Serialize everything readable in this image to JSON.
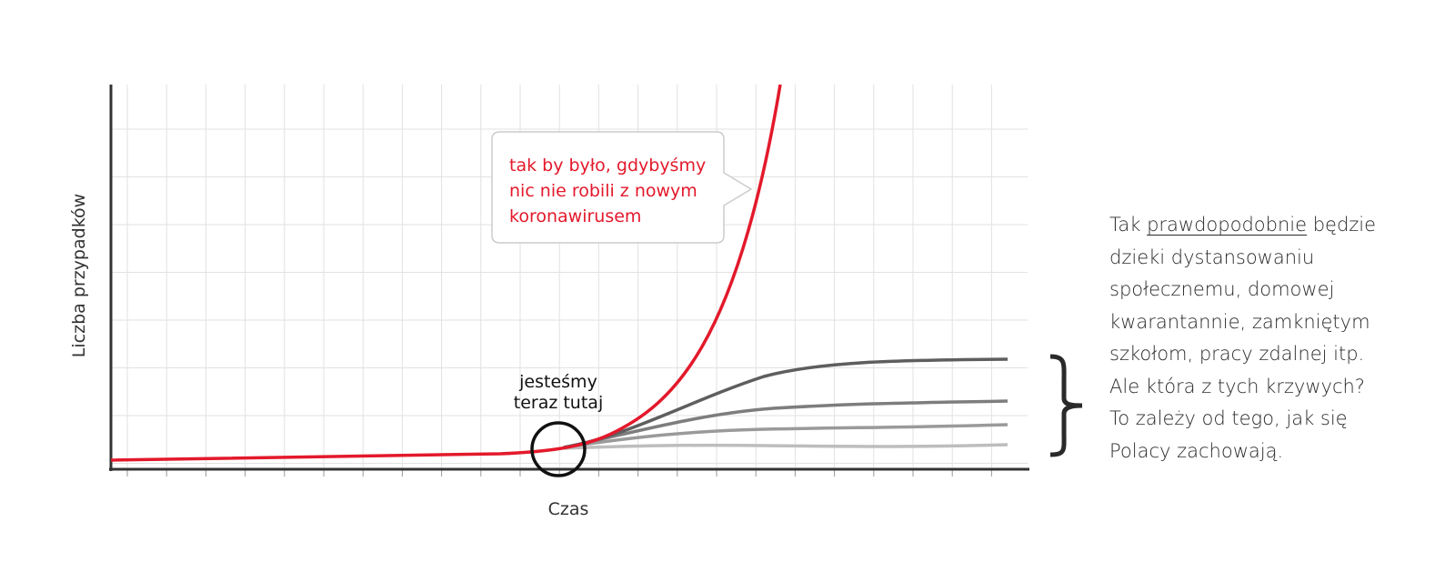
{
  "y_axis_label": "Liczba przypadków",
  "x_axis_label": "Czas",
  "callout": {
    "lines": [
      "tak by było, gdybyśmy",
      "nic nie robili z nowym",
      "koronawirusem"
    ]
  },
  "marker_label": {
    "lines": [
      "jesteśmy",
      "teraz tutaj"
    ]
  },
  "description": {
    "first_line": [
      "Tak",
      "prawdopodobnie",
      "będzie"
    ],
    "lines": [
      "dzieki dystansowaniu",
      "społecznemu, domowej",
      "kwarantannie, zamkniętym",
      "szkołom, pracy zdalnej itp.",
      "Ale która z tych krzywych?",
      "To zależy od tego, jak się",
      "Polacy zachowają."
    ]
  }
}
